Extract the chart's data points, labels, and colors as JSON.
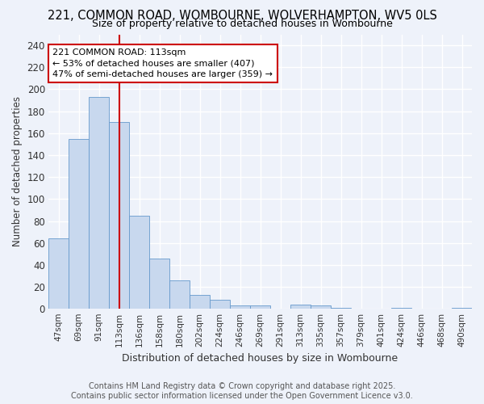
{
  "title": "221, COMMON ROAD, WOMBOURNE, WOLVERHAMPTON, WV5 0LS",
  "subtitle": "Size of property relative to detached houses in Wombourne",
  "xlabel": "Distribution of detached houses by size in Wombourne",
  "ylabel": "Number of detached properties",
  "categories": [
    "47sqm",
    "69sqm",
    "91sqm",
    "113sqm",
    "136sqm",
    "158sqm",
    "180sqm",
    "202sqm",
    "224sqm",
    "246sqm",
    "269sqm",
    "291sqm",
    "313sqm",
    "335sqm",
    "357sqm",
    "379sqm",
    "401sqm",
    "424sqm",
    "446sqm",
    "468sqm",
    "490sqm"
  ],
  "values": [
    64,
    155,
    193,
    170,
    85,
    46,
    26,
    13,
    8,
    3,
    3,
    0,
    4,
    3,
    1,
    0,
    0,
    1,
    0,
    0,
    1
  ],
  "bar_color": "#c8d8ee",
  "bar_edge_color": "#6699cc",
  "subject_line_index": 3,
  "subject_line_color": "#cc0000",
  "annotation_text": "221 COMMON ROAD: 113sqm\n← 53% of detached houses are smaller (407)\n47% of semi-detached houses are larger (359) →",
  "annotation_box_color": "#ffffff",
  "annotation_box_edge_color": "#cc0000",
  "ylim": [
    0,
    250
  ],
  "yticks": [
    0,
    20,
    40,
    60,
    80,
    100,
    120,
    140,
    160,
    180,
    200,
    220,
    240
  ],
  "footer": "Contains HM Land Registry data © Crown copyright and database right 2025.\nContains public sector information licensed under the Open Government Licence v3.0.",
  "bg_color": "#eef2fa",
  "grid_color": "#ffffff",
  "title_color": "#000000",
  "title_fontsize": 10.5,
  "subtitle_fontsize": 9
}
